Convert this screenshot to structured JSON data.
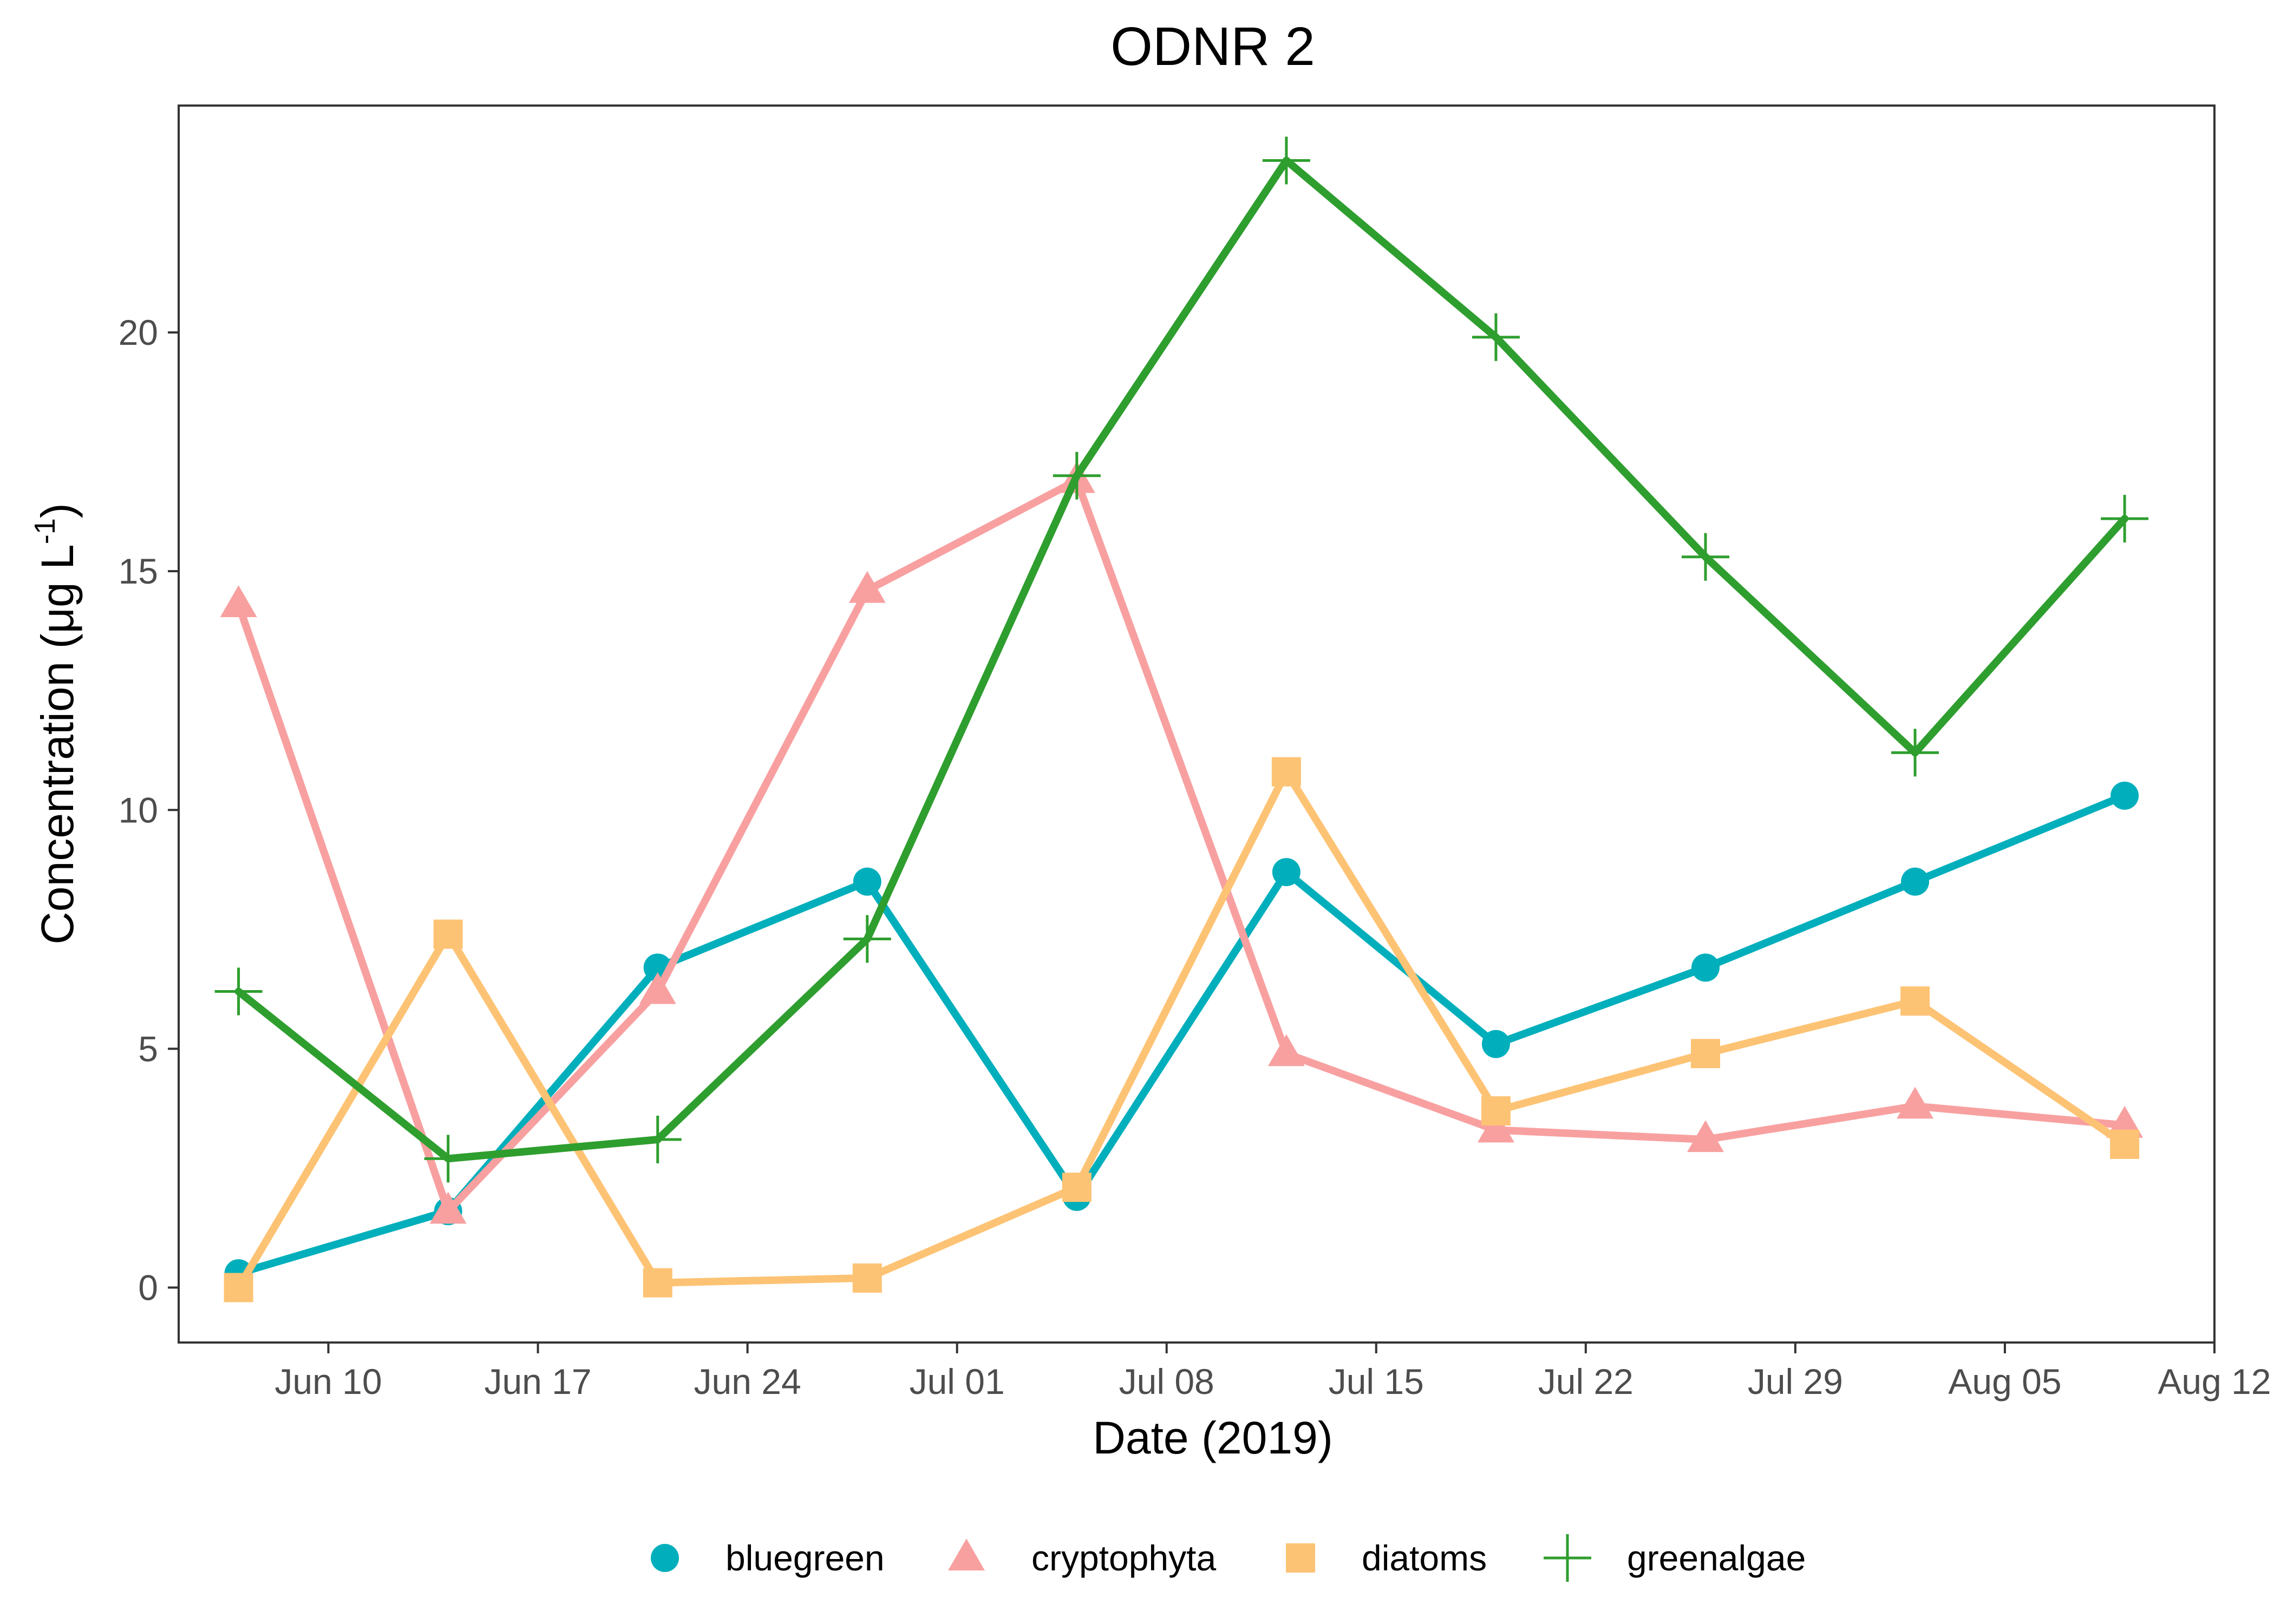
{
  "chart_data": {
    "type": "line",
    "title": "ODNR 2",
    "xlabel": "Date (2019)",
    "ylabel_main": "Concentration (μg L",
    "ylabel_sup": "-1",
    "ylabel_close": ")",
    "x": [
      "2019-06-07",
      "2019-06-14",
      "2019-06-21",
      "2019-06-28",
      "2019-07-05",
      "2019-07-12",
      "2019-07-19",
      "2019-07-26",
      "2019-08-02",
      "2019-08-09"
    ],
    "xlim": [
      "2019-06-05",
      "2019-08-12"
    ],
    "ylim": [
      -1.15,
      24.75
    ],
    "x_ticks": [
      {
        "date": "2019-06-10",
        "label": "Jun 10"
      },
      {
        "date": "2019-06-17",
        "label": "Jun 17"
      },
      {
        "date": "2019-06-24",
        "label": "Jun 24"
      },
      {
        "date": "2019-07-01",
        "label": "Jul 01"
      },
      {
        "date": "2019-07-08",
        "label": "Jul 08"
      },
      {
        "date": "2019-07-15",
        "label": "Jul 15"
      },
      {
        "date": "2019-07-22",
        "label": "Jul 22"
      },
      {
        "date": "2019-07-29",
        "label": "Jul 29"
      },
      {
        "date": "2019-08-05",
        "label": "Aug 05"
      },
      {
        "date": "2019-08-12",
        "label": "Aug 12"
      }
    ],
    "y_ticks": [
      {
        "value": 0,
        "label": "0"
      },
      {
        "value": 5,
        "label": "5"
      },
      {
        "value": 10,
        "label": "10"
      },
      {
        "value": 15,
        "label": "15"
      },
      {
        "value": 20,
        "label": "20"
      }
    ],
    "grid": false,
    "legend_position": "bottom",
    "series": [
      {
        "name": "bluegreen",
        "color": "#00AFBB",
        "marker": "circle",
        "values": [
          0.3,
          1.6,
          6.7,
          8.5,
          1.9,
          8.7,
          5.1,
          6.7,
          8.5,
          10.3
        ]
      },
      {
        "name": "cryptophyta",
        "color": "#F8A0A0",
        "marker": "triangle",
        "values": [
          14.3,
          1.6,
          6.2,
          14.6,
          16.9,
          4.9,
          3.3,
          3.1,
          3.8,
          3.4
        ]
      },
      {
        "name": "diatoms",
        "color": "#FDC374",
        "marker": "square",
        "values": [
          0.0,
          7.4,
          0.1,
          0.2,
          2.1,
          10.8,
          3.7,
          4.9,
          6.0,
          3.0
        ]
      },
      {
        "name": "greenalgae",
        "color": "#2E9E2E",
        "marker": "plus",
        "values": [
          6.2,
          2.7,
          3.1,
          7.3,
          17.0,
          23.6,
          19.9,
          15.3,
          11.2,
          16.1
        ]
      }
    ]
  }
}
